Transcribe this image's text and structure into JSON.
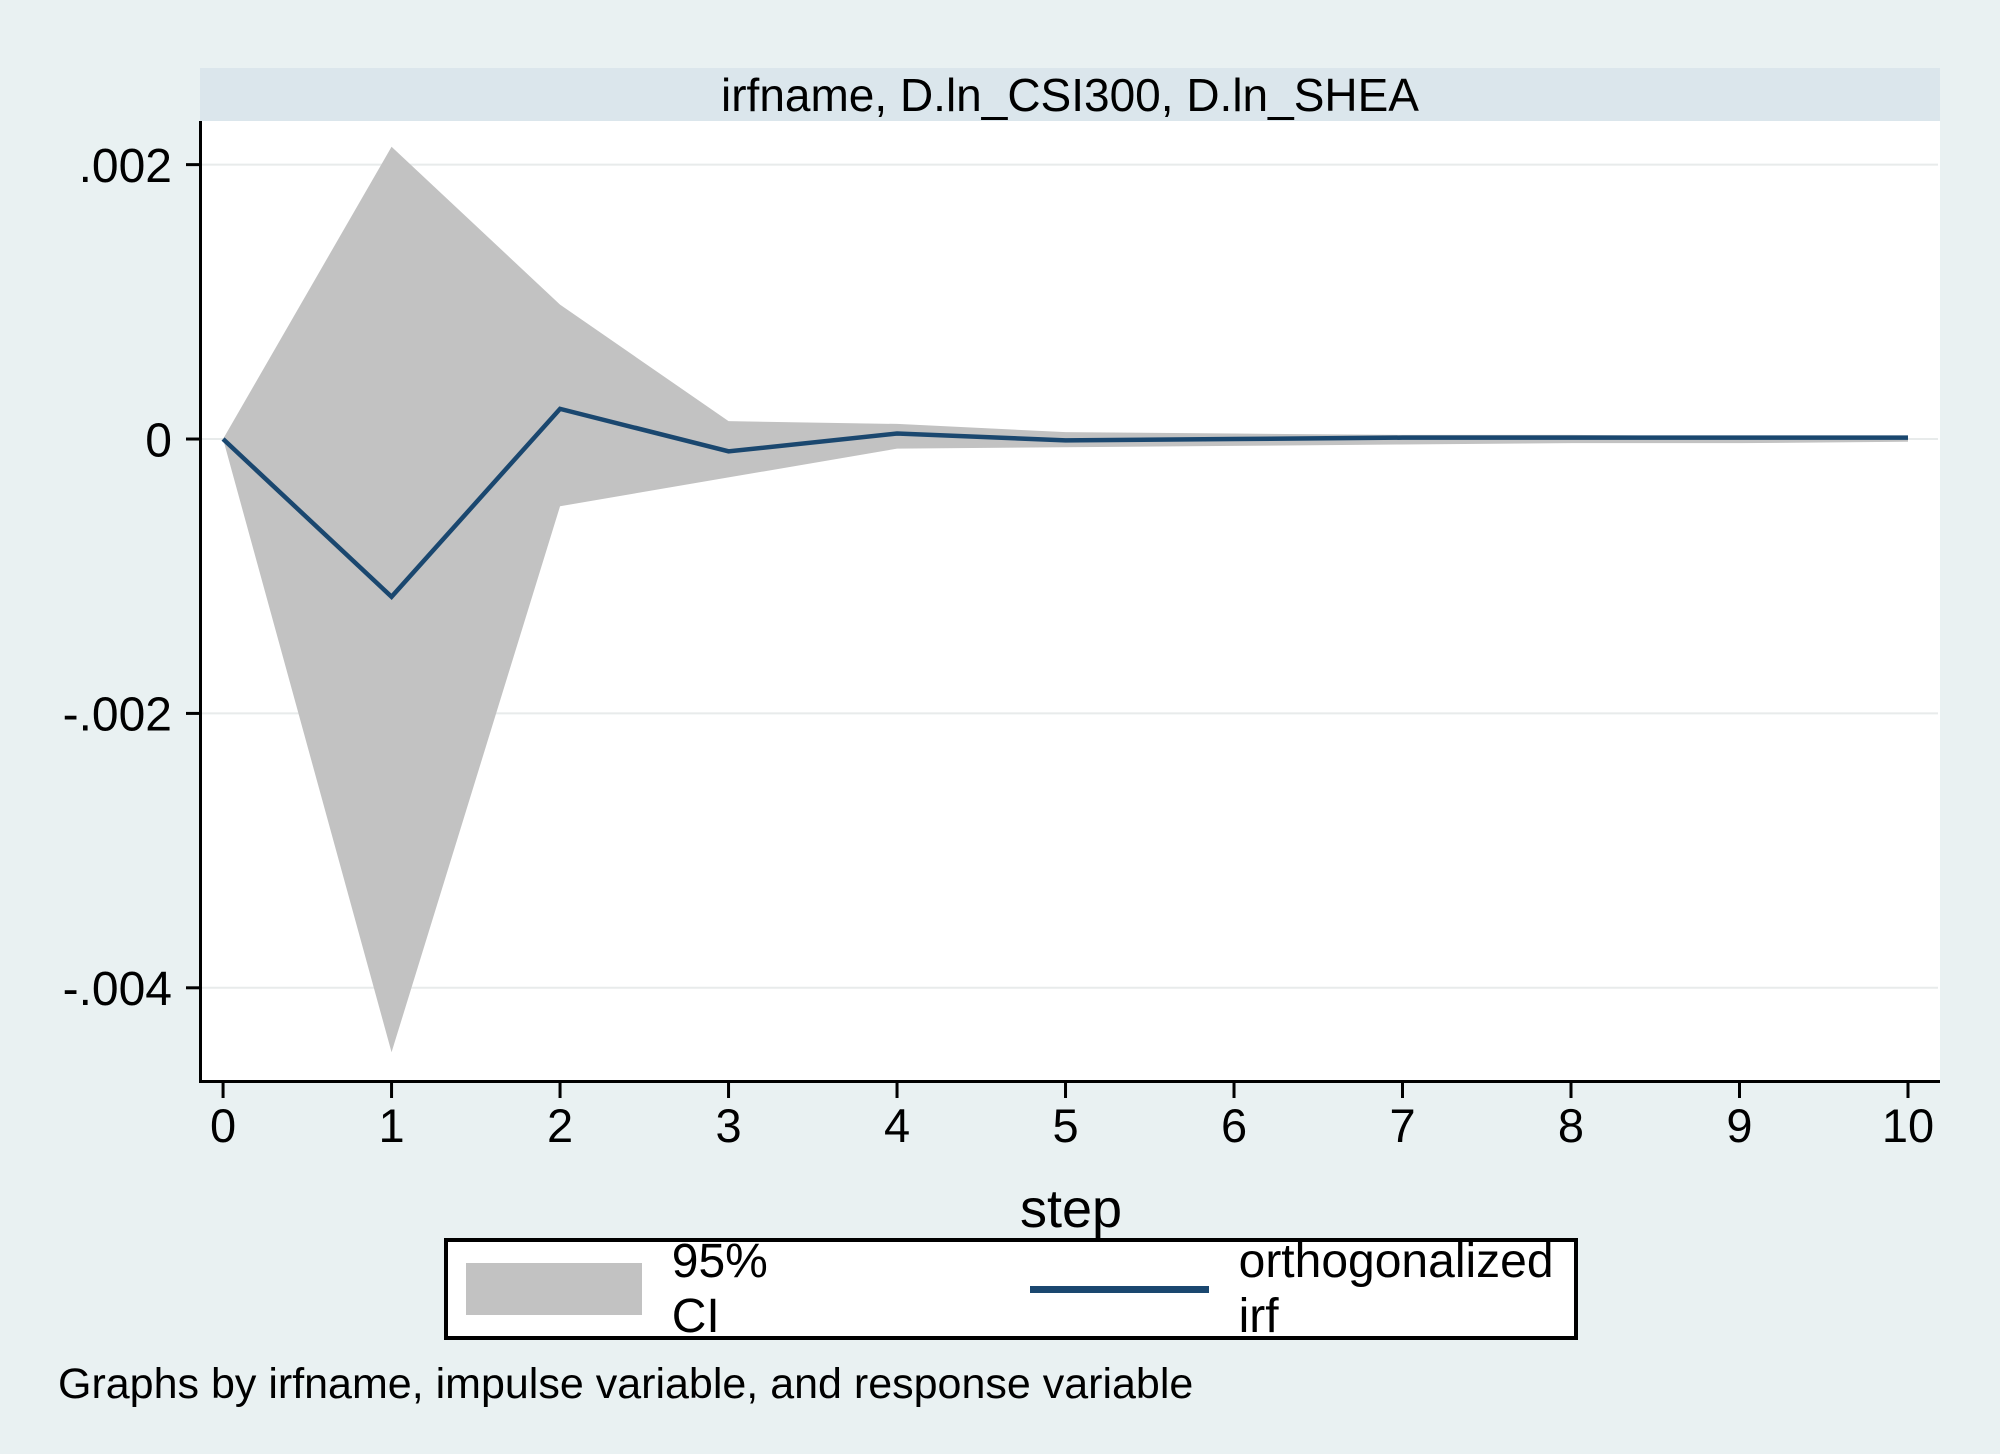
{
  "chart": {
    "colors": {
      "background": "#e9f1f2",
      "title_band": "#dbe6ec",
      "plot_background": "#ffffff",
      "grid": "#e8ebeb",
      "ci_band": "#c2c2c2",
      "irf_line": "#1a476f",
      "axis": "#000000",
      "legend_border": "#000000",
      "legend_background": "#ffffff"
    }
  },
  "chart_data": {
    "type": "line",
    "title": "irfname, D.ln_CSI300, D.ln_SHEA",
    "xlabel": "step",
    "ylabel": "",
    "note": "Graphs by irfname, impulse variable, and response variable",
    "x": [
      0,
      1,
      2,
      3,
      4,
      5,
      6,
      7,
      8,
      9,
      10
    ],
    "series": [
      {
        "name": "95% CI",
        "type": "band",
        "upper": [
          0,
          0.00213,
          0.00098,
          0.00013,
          0.00011,
          5e-05,
          4e-05,
          3e-05,
          3e-05,
          2e-05,
          1e-05
        ],
        "lower": [
          0,
          -0.00447,
          -0.00049,
          -0.00028,
          -7e-05,
          -6e-05,
          -5e-05,
          -4e-05,
          -3e-05,
          -3e-05,
          -2e-05
        ]
      },
      {
        "name": "orthogonalized irf",
        "type": "line",
        "values": [
          0,
          -0.00115,
          0.00022,
          -9e-05,
          4e-05,
          -1e-05,
          0.0,
          1e-05,
          1e-05,
          1e-05,
          1e-05
        ]
      }
    ],
    "yticks": [
      0.002,
      0,
      -0.002,
      -0.004
    ],
    "ytick_labels": [
      ".002",
      "0",
      "-.002",
      "-.004"
    ],
    "xticks": [
      0,
      1,
      2,
      3,
      4,
      5,
      6,
      7,
      8,
      9,
      10
    ],
    "xtick_labels": [
      "0",
      "1",
      "2",
      "3",
      "4",
      "5",
      "6",
      "7",
      "8",
      "9",
      "10"
    ],
    "ylim": [
      -0.004672,
      0.002318
    ],
    "xlim": [
      -0.125,
      10.19
    ],
    "grid": true,
    "legend_position": "bottom"
  }
}
